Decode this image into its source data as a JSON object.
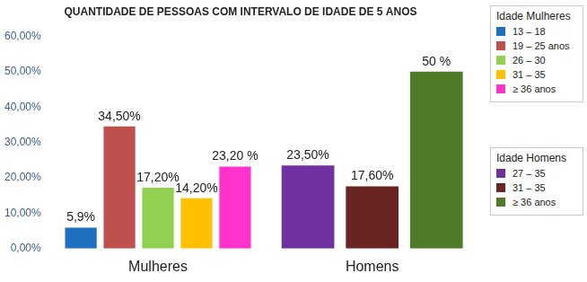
{
  "chart_data": {
    "type": "bar",
    "title": "QUANTIDADE DE PESSOAS COM INTERVALO DE IDADE DE 5 ANOS",
    "categories": [
      "Mulheres",
      "Homens"
    ],
    "series": [
      {
        "name": "13 – 18",
        "group": "Idade Mulheres",
        "color": "#1f70c1",
        "values": [
          5.9,
          null
        ],
        "value_labels": [
          "5,9%",
          null
        ]
      },
      {
        "name": "19 – 25 anos",
        "group": "Idade Mulheres",
        "color": "#c0504d",
        "values": [
          34.5,
          null
        ],
        "value_labels": [
          "34,50%",
          null
        ]
      },
      {
        "name": "26 – 30",
        "group": "Idade Mulheres",
        "color": "#92d050",
        "values": [
          17.2,
          null
        ],
        "value_labels": [
          "17,20%",
          null
        ]
      },
      {
        "name": "31 – 35",
        "group": "Idade Mulheres",
        "color": "#ffc000",
        "values": [
          14.2,
          null
        ],
        "value_labels": [
          "14,20%",
          null
        ]
      },
      {
        "name": "≥ 36 anos",
        "group": "Idade Mulheres",
        "color": "#ff33cc",
        "values": [
          23.2,
          null
        ],
        "value_labels": [
          "23,20 %",
          null
        ]
      },
      {
        "name": "27 – 35",
        "group": "Idade Homens",
        "color": "#7030a0",
        "values": [
          null,
          23.5
        ],
        "value_labels": [
          null,
          "23,50%"
        ]
      },
      {
        "name": "31 – 35",
        "group": "Idade Homens",
        "color": "#6b2424",
        "values": [
          null,
          17.6
        ],
        "value_labels": [
          null,
          "17,60%"
        ]
      },
      {
        "name": "≥ 36 anos",
        "group": "Idade Homens",
        "color": "#4f7a28",
        "values": [
          null,
          50
        ],
        "value_labels": [
          null,
          "50 %"
        ]
      }
    ],
    "ylim": [
      0,
      60
    ],
    "yticks": [
      {
        "value": 0,
        "label": "0,00%"
      },
      {
        "value": 10,
        "label": "10,00%"
      },
      {
        "value": 20,
        "label": "20,00%"
      },
      {
        "value": 30,
        "label": "30,00%"
      },
      {
        "value": 40,
        "label": "40,00%"
      },
      {
        "value": 50,
        "label": "50,00%"
      },
      {
        "value": 60,
        "label": "60,00%"
      }
    ],
    "grid": false,
    "legend": "right",
    "data_labels": true
  }
}
